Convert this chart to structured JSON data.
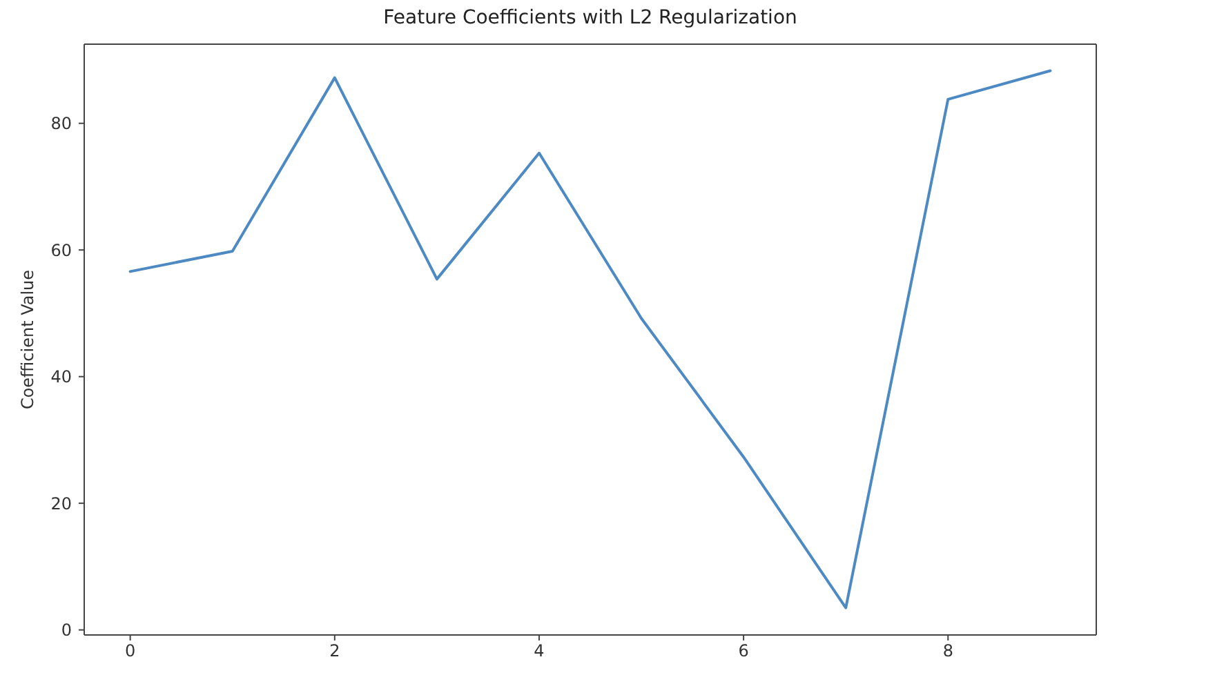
{
  "chart_data": {
    "type": "line",
    "title": "Feature Coefficients with L2 Regularization",
    "ylabel": "Coefficient Value",
    "x": [
      0,
      1,
      2,
      3,
      4,
      5,
      6,
      7,
      8,
      9
    ],
    "series": [
      {
        "color": "#4d8ac3",
        "values": [
          56.6,
          59.8,
          87.2,
          55.4,
          75.3,
          49.2,
          27.3,
          3.5,
          83.8,
          88.3
        ]
      }
    ],
    "xlim": [
      -0.45,
      9.45
    ],
    "ylim": [
      -0.8,
      92.5
    ],
    "xticks": [
      0,
      2,
      4,
      6,
      8
    ],
    "yticks": [
      0,
      20,
      40,
      60,
      80
    ]
  }
}
